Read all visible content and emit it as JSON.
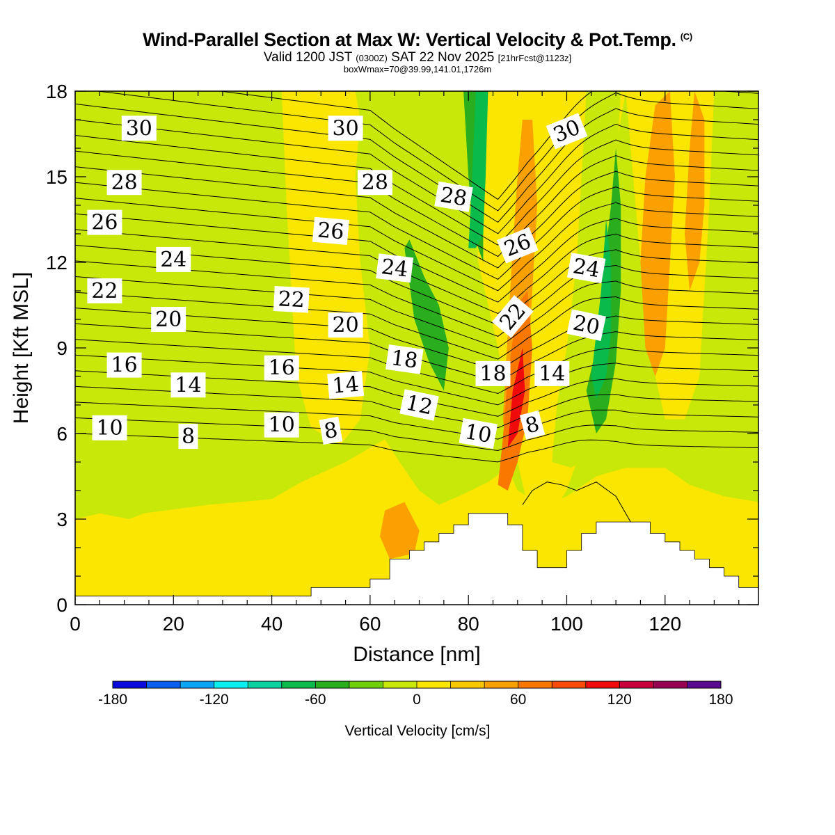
{
  "header": {
    "title": "Wind-Parallel Section at Max W: Vertical Velocity & Pot.Temp.",
    "title_tag": "(C)",
    "subtitle_valid": "Valid 1200 JST",
    "subtitle_utc": "(0300Z)",
    "subtitle_date": "SAT 22 Nov 2025",
    "subtitle_fcst": "[21hrFcst@1123z]",
    "boxline": "boxWmax=70@39.99,141.01,1726m"
  },
  "chart_data": {
    "type": "heatmap",
    "xlabel": "Distance [nm]",
    "ylabel": "Height [Kft MSL]",
    "xlim": [
      0,
      139
    ],
    "ylim": [
      0,
      18
    ],
    "x_ticks": [
      0,
      20,
      40,
      60,
      80,
      100,
      120
    ],
    "y_ticks": [
      0,
      3,
      6,
      9,
      12,
      15,
      18
    ],
    "colorbar": {
      "label": "Vertical Velocity [cm/s]",
      "range": [
        -180,
        180
      ],
      "ticks": [
        -180,
        -120,
        -60,
        0,
        60,
        120,
        180
      ],
      "colors": [
        "#0a0adc",
        "#0a5ef0",
        "#0aa6f5",
        "#0af0f0",
        "#0ad2a0",
        "#0aba4a",
        "#2aae1e",
        "#6fcf0a",
        "#c8e80a",
        "#fae600",
        "#fac800",
        "#faa000",
        "#fa7800",
        "#fa4a0a",
        "#f00a0a",
        "#c8003c",
        "#960050",
        "#5a0a8c"
      ]
    },
    "background_level_color": "#c8e80a",
    "terrain": [
      [
        0,
        0.3
      ],
      [
        48,
        0.3
      ],
      [
        48,
        0.6
      ],
      [
        60,
        0.6
      ],
      [
        60,
        0.9
      ],
      [
        64,
        0.9
      ],
      [
        64,
        1.6
      ],
      [
        68,
        1.6
      ],
      [
        68,
        1.9
      ],
      [
        71,
        1.9
      ],
      [
        71,
        2.2
      ],
      [
        74,
        2.2
      ],
      [
        74,
        2.5
      ],
      [
        77,
        2.5
      ],
      [
        77,
        2.8
      ],
      [
        80,
        2.8
      ],
      [
        80,
        3.2
      ],
      [
        88,
        3.2
      ],
      [
        88,
        2.8
      ],
      [
        91,
        2.8
      ],
      [
        91,
        1.9
      ],
      [
        94,
        1.9
      ],
      [
        94,
        1.3
      ],
      [
        100,
        1.3
      ],
      [
        100,
        1.9
      ],
      [
        103,
        1.9
      ],
      [
        103,
        2.5
      ],
      [
        106,
        2.5
      ],
      [
        106,
        2.9
      ],
      [
        117,
        2.9
      ],
      [
        117,
        2.5
      ],
      [
        120,
        2.5
      ],
      [
        120,
        2.2
      ],
      [
        123,
        2.2
      ],
      [
        123,
        1.9
      ],
      [
        126,
        1.9
      ],
      [
        126,
        1.6
      ],
      [
        129,
        1.6
      ],
      [
        129,
        1.3
      ],
      [
        132,
        1.3
      ],
      [
        132,
        1.0
      ],
      [
        135,
        1.0
      ],
      [
        135,
        0.6
      ],
      [
        139,
        0.6
      ]
    ],
    "wfields": [
      {
        "level": 15,
        "poly": [
          [
            0,
            3.0
          ],
          [
            5,
            3.2
          ],
          [
            11,
            3.0
          ],
          [
            14,
            3.2
          ],
          [
            27,
            3.5
          ],
          [
            40,
            3.7
          ],
          [
            46,
            4.3
          ],
          [
            55,
            5.0
          ],
          [
            60,
            5.5
          ],
          [
            63,
            5.8
          ],
          [
            66,
            5.0
          ],
          [
            70,
            4.0
          ],
          [
            74,
            3.5
          ],
          [
            78,
            3.8
          ],
          [
            84,
            4.3
          ],
          [
            88,
            4.8
          ],
          [
            90,
            4.0
          ],
          [
            95,
            3.5
          ],
          [
            100,
            3.8
          ],
          [
            106,
            4.5
          ],
          [
            112,
            4.8
          ],
          [
            120,
            4.8
          ],
          [
            125,
            4.2
          ],
          [
            132,
            3.8
          ],
          [
            139,
            3.6
          ],
          [
            139,
            0
          ],
          [
            0,
            0
          ]
        ]
      },
      {
        "level": 15,
        "poly": [
          [
            54,
            5.6
          ],
          [
            58,
            6.5
          ],
          [
            60,
            9.0
          ],
          [
            58,
            12.0
          ],
          [
            57,
            15.0
          ],
          [
            58,
            17.0
          ],
          [
            57,
            18.0
          ],
          [
            42,
            18.0
          ],
          [
            43,
            14.0
          ],
          [
            44,
            11.0
          ],
          [
            45,
            8.0
          ],
          [
            48,
            6.2
          ]
        ]
      },
      {
        "level": 15,
        "poly": [
          [
            80,
            18
          ],
          [
            82,
            12
          ],
          [
            86,
            9
          ],
          [
            88,
            7
          ],
          [
            90,
            5
          ],
          [
            92,
            3.5
          ],
          [
            96,
            3.0
          ],
          [
            100,
            4.0
          ],
          [
            104,
            6
          ],
          [
            106,
            9
          ],
          [
            108,
            13
          ],
          [
            110,
            16
          ],
          [
            112,
            18
          ]
        ]
      },
      {
        "level": 15,
        "poly": [
          [
            112,
            18
          ],
          [
            114,
            14
          ],
          [
            116,
            10
          ],
          [
            118,
            8
          ],
          [
            120,
            6.5
          ],
          [
            124,
            6.5
          ],
          [
            127,
            8
          ],
          [
            128,
            11
          ],
          [
            129,
            14
          ],
          [
            130,
            18
          ]
        ]
      },
      {
        "level": 15,
        "poly": [
          [
            73,
            18
          ],
          [
            75,
            15
          ],
          [
            76,
            18
          ]
        ]
      },
      {
        "level": 45,
        "poly": [
          [
            63,
            3.3
          ],
          [
            67,
            3.6
          ],
          [
            70,
            2.6
          ],
          [
            69,
            1.8
          ],
          [
            64,
            1.6
          ],
          [
            62,
            2.4
          ]
        ]
      },
      {
        "level": 45,
        "poly": [
          [
            87,
            6.5
          ],
          [
            88,
            9.5
          ],
          [
            89,
            12.5
          ],
          [
            90,
            15
          ],
          [
            91,
            17
          ],
          [
            93,
            17
          ],
          [
            94,
            14
          ],
          [
            93,
            11
          ],
          [
            92,
            8
          ],
          [
            91,
            6.0
          ],
          [
            89,
            4.5
          ]
        ]
      },
      {
        "level": 45,
        "poly": [
          [
            115,
            12
          ],
          [
            116,
            15
          ],
          [
            118,
            17.5
          ],
          [
            121,
            18
          ],
          [
            122,
            15
          ],
          [
            121,
            12
          ],
          [
            120,
            9
          ],
          [
            118,
            8
          ],
          [
            116,
            9
          ]
        ]
      },
      {
        "level": 45,
        "poly": [
          [
            124,
            13
          ],
          [
            125,
            16
          ],
          [
            126,
            18
          ],
          [
            128,
            17
          ],
          [
            128,
            14
          ],
          [
            127,
            12
          ],
          [
            125,
            11
          ]
        ]
      },
      {
        "level": 75,
        "poly": [
          [
            86,
            4.2
          ],
          [
            87,
            5.8
          ],
          [
            88,
            8
          ],
          [
            90,
            10.5
          ],
          [
            92,
            11
          ],
          [
            93,
            9
          ],
          [
            92,
            6.5
          ],
          [
            90,
            5.0
          ],
          [
            88,
            4.0
          ]
        ]
      },
      {
        "level": 105,
        "poly": [
          [
            88,
            5.5
          ],
          [
            89,
            7.5
          ],
          [
            91,
            9.0
          ],
          [
            91.5,
            7.5
          ],
          [
            90,
            6.0
          ]
        ]
      },
      {
        "level": -15,
        "poly": [
          [
            62,
            13.5
          ],
          [
            66,
            13.0
          ],
          [
            68,
            11
          ],
          [
            71,
            8.5
          ],
          [
            73,
            7.0
          ],
          [
            76,
            6.0
          ],
          [
            79,
            5.4
          ],
          [
            83,
            5.2
          ],
          [
            84,
            6.5
          ],
          [
            83,
            9
          ],
          [
            82,
            12
          ],
          [
            81,
            14
          ],
          [
            80,
            16
          ],
          [
            79,
            18
          ],
          [
            73,
            18
          ],
          [
            72,
            15
          ],
          [
            70,
            13.5
          ],
          [
            67,
            14.5
          ],
          [
            64,
            15
          ]
        ]
      },
      {
        "level": -15,
        "poly": [
          [
            97,
            5.0
          ],
          [
            101,
            4.8
          ],
          [
            104,
            5.2
          ],
          [
            106,
            6.5
          ],
          [
            108,
            9
          ],
          [
            109,
            12
          ],
          [
            110,
            15
          ],
          [
            111,
            18
          ],
          [
            104,
            18
          ],
          [
            103,
            15
          ],
          [
            102,
            12
          ],
          [
            100,
            9
          ],
          [
            98,
            7
          ]
        ]
      },
      {
        "level": -15,
        "poly": [
          [
            136,
            18
          ],
          [
            138,
            16
          ],
          [
            139,
            17
          ],
          [
            139,
            18
          ]
        ]
      },
      {
        "level": -45,
        "poly": [
          [
            67,
            12.5
          ],
          [
            69,
            10
          ],
          [
            72,
            8.5
          ],
          [
            75,
            7.5
          ],
          [
            76,
            9
          ],
          [
            74,
            10.5
          ],
          [
            71,
            11.5
          ],
          [
            68,
            12.8
          ]
        ]
      },
      {
        "level": -45,
        "poly": [
          [
            79,
            18
          ],
          [
            80,
            15
          ],
          [
            81,
            13
          ],
          [
            83,
            12
          ],
          [
            83,
            15
          ],
          [
            82,
            18
          ]
        ]
      },
      {
        "level": -45,
        "poly": [
          [
            104,
            7.5
          ],
          [
            106,
            9
          ],
          [
            107,
            11
          ],
          [
            109,
            14
          ],
          [
            110,
            16
          ],
          [
            111,
            14
          ],
          [
            111,
            11
          ],
          [
            110,
            8.5
          ],
          [
            108,
            6.5
          ],
          [
            106,
            6
          ]
        ]
      },
      {
        "level": -75,
        "poly": [
          [
            80,
            12.5
          ],
          [
            80.5,
            14
          ],
          [
            81,
            16
          ],
          [
            81.5,
            18
          ],
          [
            84,
            18
          ],
          [
            83.5,
            15
          ],
          [
            83,
            13
          ],
          [
            81.5,
            12.5
          ]
        ]
      },
      {
        "level": -75,
        "poly": [
          [
            105,
            8.0
          ],
          [
            106,
            9.5
          ],
          [
            107,
            11
          ],
          [
            108,
            13.5
          ],
          [
            109,
            12
          ],
          [
            109,
            9.5
          ],
          [
            108,
            8
          ],
          [
            106,
            7.2
          ]
        ]
      }
    ],
    "theta_levels": [
      8,
      9,
      10,
      11,
      12,
      13,
      14,
      15,
      16,
      17,
      18,
      19,
      20,
      21,
      22,
      23,
      24,
      25,
      26,
      27,
      28,
      29,
      30,
      31
    ],
    "theta_labels": [
      {
        "text": "30",
        "x": 13,
        "y": 16.7,
        "rot": 0
      },
      {
        "text": "30",
        "x": 55,
        "y": 16.7,
        "rot": 0
      },
      {
        "text": "30",
        "x": 100,
        "y": 16.6,
        "rot": -22
      },
      {
        "text": "28",
        "x": 10,
        "y": 14.8,
        "rot": 0
      },
      {
        "text": "28",
        "x": 61,
        "y": 14.8,
        "rot": 0
      },
      {
        "text": "28",
        "x": 77,
        "y": 14.3,
        "rot": 10
      },
      {
        "text": "26",
        "x": 6,
        "y": 13.4,
        "rot": 0
      },
      {
        "text": "26",
        "x": 52,
        "y": 13.1,
        "rot": 5
      },
      {
        "text": "26",
        "x": 90,
        "y": 12.6,
        "rot": -22
      },
      {
        "text": "24",
        "x": 20,
        "y": 12.1,
        "rot": 0
      },
      {
        "text": "24",
        "x": 65,
        "y": 11.8,
        "rot": 7
      },
      {
        "text": "24",
        "x": 104,
        "y": 11.8,
        "rot": 10
      },
      {
        "text": "22",
        "x": 6,
        "y": 11.0,
        "rot": 0
      },
      {
        "text": "22",
        "x": 44,
        "y": 10.7,
        "rot": 3
      },
      {
        "text": "22",
        "x": 89,
        "y": 10.1,
        "rot": -50
      },
      {
        "text": "20",
        "x": 19,
        "y": 10.0,
        "rot": 0
      },
      {
        "text": "20",
        "x": 55,
        "y": 9.8,
        "rot": 0
      },
      {
        "text": "20",
        "x": 104,
        "y": 9.8,
        "rot": 12
      },
      {
        "text": "18",
        "x": 67,
        "y": 8.6,
        "rot": 8
      },
      {
        "text": "18",
        "x": 85,
        "y": 8.1,
        "rot": 0
      },
      {
        "text": "16",
        "x": 10,
        "y": 8.4,
        "rot": 0
      },
      {
        "text": "16",
        "x": 42,
        "y": 8.3,
        "rot": 0
      },
      {
        "text": "14",
        "x": 23,
        "y": 7.7,
        "rot": 0
      },
      {
        "text": "14",
        "x": 55,
        "y": 7.7,
        "rot": -5
      },
      {
        "text": "14",
        "x": 97,
        "y": 8.1,
        "rot": 0
      },
      {
        "text": "12",
        "x": 70,
        "y": 7.0,
        "rot": 12
      },
      {
        "text": "10",
        "x": 7,
        "y": 6.2,
        "rot": 0
      },
      {
        "text": "10",
        "x": 42,
        "y": 6.3,
        "rot": 0
      },
      {
        "text": "10",
        "x": 82,
        "y": 6.0,
        "rot": 10
      },
      {
        "text": "8",
        "x": 23,
        "y": 5.9,
        "rot": 0
      },
      {
        "text": "8",
        "x": 52,
        "y": 6.1,
        "rot": -10
      },
      {
        "text": "8",
        "x": 93,
        "y": 6.3,
        "rot": -15
      }
    ],
    "low_contour": [
      [
        91,
        3.5
      ],
      [
        93,
        4.0
      ],
      [
        96,
        4.3
      ],
      [
        99,
        4.2
      ],
      [
        102,
        4.0
      ],
      [
        106,
        4.3
      ],
      [
        110,
        3.8
      ],
      [
        113,
        2.9
      ]
    ]
  }
}
